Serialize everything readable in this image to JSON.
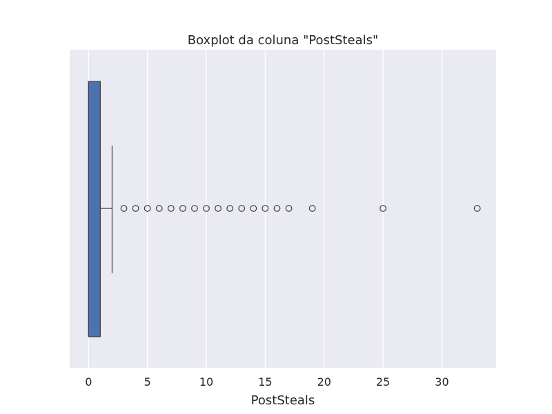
{
  "chart_data": {
    "type": "boxplot",
    "orientation": "horizontal",
    "title": "Boxplot da coluna \"PostSteals\"",
    "xlabel": "PostSteals",
    "ylabel": "",
    "xlim": [
      -1.6,
      34.6
    ],
    "xticks": [
      0,
      5,
      10,
      15,
      20,
      25,
      30
    ],
    "xtick_labels": [
      "0",
      "5",
      "10",
      "15",
      "20",
      "25",
      "30"
    ],
    "grid": true,
    "box": {
      "min": 0,
      "q1": 0,
      "median": 0,
      "q3": 1,
      "whisker_high": 2
    },
    "outliers": [
      3,
      4,
      5,
      6,
      7,
      8,
      9,
      10,
      11,
      12,
      13,
      14,
      15,
      16,
      17,
      19,
      25,
      33
    ]
  },
  "colors": {
    "background": "#eaeaf2",
    "grid": "#ffffff",
    "box_fill": "#4c72b0",
    "line": "#3d3d3d",
    "text": "#262626"
  }
}
